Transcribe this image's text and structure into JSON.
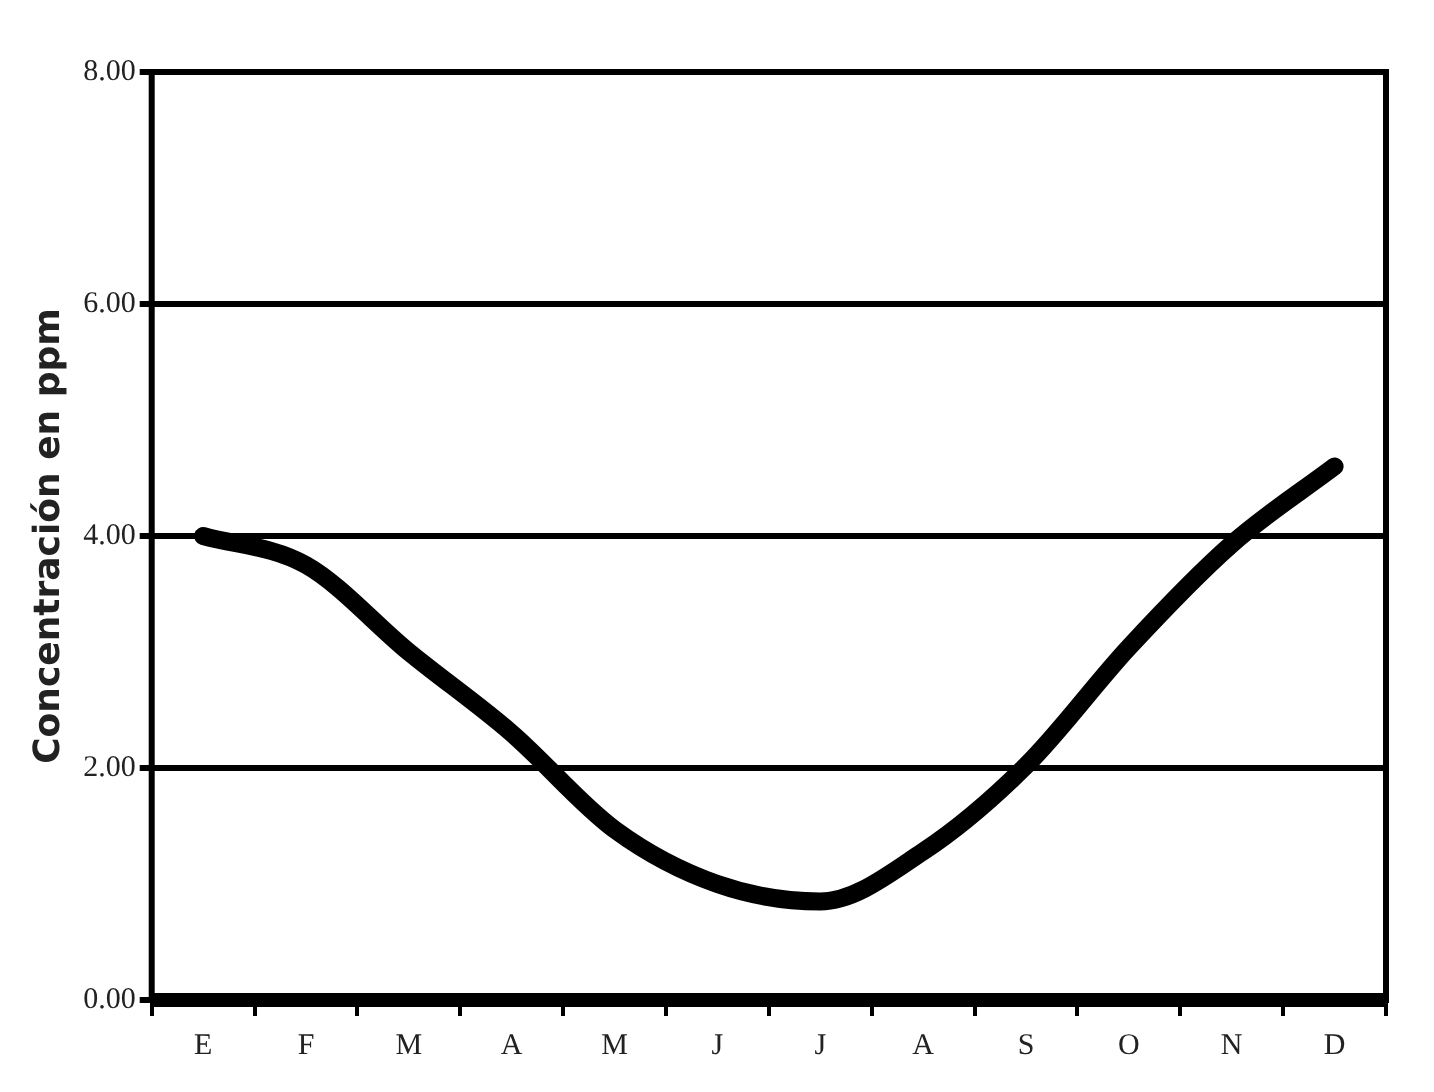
{
  "chart_data": {
    "type": "line",
    "ylabel": "Concentración en ppm",
    "categories": [
      "E",
      "F",
      "M",
      "A",
      "M",
      "J",
      "J",
      "A",
      "S",
      "O",
      "N",
      "D"
    ],
    "series": [
      {
        "color": "#000000",
        "values": [
          4.0,
          3.75,
          3.0,
          2.3,
          1.47,
          1.0,
          0.85,
          1.28,
          2.02,
          3.04,
          3.93,
          4.6
        ]
      }
    ],
    "ylim": [
      0,
      8
    ],
    "yticks": [
      {
        "value": 0,
        "label": "0.00"
      },
      {
        "value": 2,
        "label": "2.00"
      },
      {
        "value": 4,
        "label": "4.00"
      },
      {
        "value": 6,
        "label": "6.00"
      },
      {
        "value": 8,
        "label": "8.00"
      }
    ],
    "grid": "y",
    "legend": false,
    "marker": "none",
    "line_style": "solid"
  }
}
